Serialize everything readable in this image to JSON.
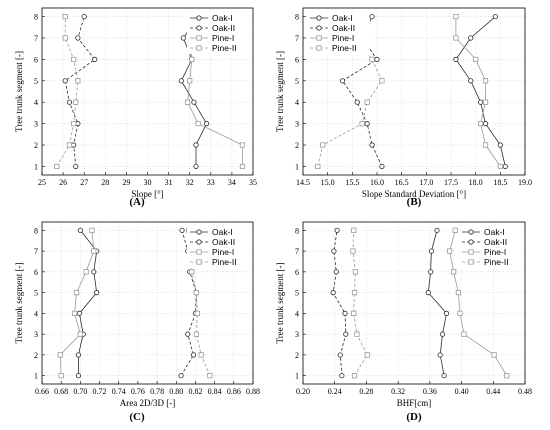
{
  "chart_data": [
    {
      "id": "A",
      "type": "line",
      "panel_label": "(A)",
      "xlabel": "Slope [°]",
      "ylabel": "Tree trunk segment [-]",
      "xlim": [
        25,
        35
      ],
      "xticks": [
        "25",
        "26",
        "27",
        "28",
        "29",
        "30",
        "31",
        "32",
        "33",
        "34",
        "35"
      ],
      "ylim": [
        0.6,
        8.4
      ],
      "yticks": [
        "1",
        "2",
        "3",
        "4",
        "5",
        "6",
        "7",
        "8"
      ],
      "legend_position": "top-right",
      "series": [
        {
          "name": "Oak-I",
          "style": "oak-solid",
          "x": [
            32.3,
            32.3,
            32.8,
            32.2,
            31.6,
            32.1,
            31.7,
            32.4
          ],
          "y": [
            1,
            2,
            3,
            4,
            5,
            6,
            7,
            8
          ]
        },
        {
          "name": "Oak-II",
          "style": "oak-dash",
          "x": [
            26.6,
            26.5,
            26.7,
            26.3,
            26.1,
            27.5,
            26.7,
            27.0
          ],
          "y": [
            1,
            2,
            3,
            4,
            5,
            6,
            7,
            8
          ]
        },
        {
          "name": "Pine-I",
          "style": "pine-solid",
          "x": [
            34.5,
            34.5,
            32.4,
            31.9,
            32.0,
            32.1,
            32.0,
            32.1
          ],
          "y": [
            1,
            2,
            3,
            4,
            5,
            6,
            7,
            8
          ]
        },
        {
          "name": "Pine-II",
          "style": "pine-dash",
          "x": [
            25.7,
            26.3,
            26.5,
            26.6,
            26.7,
            26.5,
            26.1,
            26.1
          ],
          "y": [
            1,
            2,
            3,
            4,
            5,
            6,
            7,
            8
          ]
        }
      ]
    },
    {
      "id": "B",
      "type": "line",
      "panel_label": "(B)",
      "xlabel": "Slope Standard Deviation  [°]",
      "ylabel": "Tree trunk segment [-]",
      "xlim": [
        14.5,
        19.0
      ],
      "xticks": [
        "14.5",
        "15.0",
        "15.5",
        "16.0",
        "16.5",
        "17.0",
        "17.5",
        "18.0",
        "18.5",
        "19.0"
      ],
      "ylim": [
        0.6,
        8.4
      ],
      "yticks": [
        "1",
        "2",
        "3",
        "4",
        "5",
        "6",
        "7",
        "8"
      ],
      "legend_position": "top-left",
      "series": [
        {
          "name": "Oak-I",
          "style": "oak-solid",
          "x": [
            18.6,
            18.5,
            18.2,
            18.1,
            17.9,
            17.6,
            17.9,
            18.4
          ],
          "y": [
            1,
            2,
            3,
            4,
            5,
            6,
            7,
            8
          ]
        },
        {
          "name": "Oak-II",
          "style": "oak-dash",
          "x": [
            16.1,
            15.9,
            15.8,
            15.6,
            15.3,
            16.0,
            15.7,
            15.9
          ],
          "y": [
            1,
            2,
            3,
            4,
            5,
            6,
            7,
            8
          ]
        },
        {
          "name": "Pine-I",
          "style": "pine-solid",
          "x": [
            18.5,
            18.2,
            18.1,
            18.2,
            18.2,
            18.0,
            17.6,
            17.6
          ],
          "y": [
            1,
            2,
            3,
            4,
            5,
            6,
            7,
            8
          ]
        },
        {
          "name": "Pine-II",
          "style": "pine-dash",
          "x": [
            14.8,
            14.9,
            15.7,
            15.8,
            16.1,
            15.9,
            15.6,
            15.6
          ],
          "y": [
            1,
            2,
            3,
            4,
            5,
            6,
            7,
            8
          ]
        }
      ]
    },
    {
      "id": "C",
      "type": "line",
      "panel_label": "(C)",
      "xlabel": "Area 2D/3D [-]",
      "ylabel": "Tree trunk segment [-]",
      "xlim": [
        0.66,
        0.88
      ],
      "xticks": [
        "0.66",
        "0.68",
        "0.70",
        "0.72",
        "0.74",
        "0.76",
        "0.78",
        "0.80",
        "0.82",
        "0.84",
        "0.86",
        "0.88"
      ],
      "ylim": [
        0.6,
        8.4
      ],
      "yticks": [
        "1",
        "2",
        "3",
        "4",
        "5",
        "6",
        "7",
        "8"
      ],
      "legend_position": "top-right",
      "series": [
        {
          "name": "Oak-I",
          "style": "oak-solid",
          "x": [
            0.698,
            0.698,
            0.703,
            0.699,
            0.717,
            0.714,
            0.717,
            0.7
          ],
          "y": [
            1,
            2,
            3,
            4,
            5,
            6,
            7,
            8
          ]
        },
        {
          "name": "Oak-II",
          "style": "oak-dash",
          "x": [
            0.805,
            0.818,
            0.812,
            0.82,
            0.821,
            0.814,
            0.812,
            0.806
          ],
          "y": [
            1,
            2,
            3,
            4,
            5,
            6,
            7,
            8
          ]
        },
        {
          "name": "Pine-I",
          "style": "pine-solid",
          "x": [
            0.68,
            0.679,
            0.7,
            0.694,
            0.696,
            0.706,
            0.714,
            0.712
          ],
          "y": [
            1,
            2,
            3,
            4,
            5,
            6,
            7,
            8
          ]
        },
        {
          "name": "Pine-II",
          "style": "pine-dash",
          "x": [
            0.835,
            0.826,
            0.821,
            0.822,
            0.821,
            0.816,
            0.814,
            0.813
          ],
          "y": [
            1,
            2,
            3,
            4,
            5,
            6,
            7,
            8
          ]
        }
      ]
    },
    {
      "id": "D",
      "type": "line",
      "panel_label": "(D)",
      "xlabel": "BHF[cm]",
      "ylabel": "Tree trunk segment [-]",
      "xlim": [
        0.2,
        0.48
      ],
      "xticks": [
        "0.20",
        "0.24",
        "0.28",
        "0.32",
        "0.36",
        "0.40",
        "0.44",
        "0.48"
      ],
      "ylim": [
        0.6,
        8.4
      ],
      "yticks": [
        "1",
        "2",
        "3",
        "4",
        "5",
        "6",
        "7",
        "8"
      ],
      "legend_position": "top-right",
      "series": [
        {
          "name": "Oak-I",
          "style": "oak-solid",
          "x": [
            0.378,
            0.373,
            0.376,
            0.381,
            0.358,
            0.361,
            0.362,
            0.369
          ],
          "y": [
            1,
            2,
            3,
            4,
            5,
            6,
            7,
            8
          ]
        },
        {
          "name": "Oak-II",
          "style": "oak-dash",
          "x": [
            0.249,
            0.247,
            0.254,
            0.253,
            0.238,
            0.242,
            0.239,
            0.243
          ],
          "y": [
            1,
            2,
            3,
            4,
            5,
            6,
            7,
            8
          ]
        },
        {
          "name": "Pine-I",
          "style": "pine-solid",
          "x": [
            0.457,
            0.441,
            0.403,
            0.398,
            0.396,
            0.39,
            0.385,
            0.392
          ],
          "y": [
            1,
            2,
            3,
            4,
            5,
            6,
            7,
            8
          ]
        },
        {
          "name": "Pine-II",
          "style": "pine-dash",
          "x": [
            0.265,
            0.281,
            0.268,
            0.264,
            0.265,
            0.266,
            0.263,
            0.264
          ],
          "y": [
            1,
            2,
            3,
            4,
            5,
            6,
            7,
            8
          ]
        }
      ]
    }
  ],
  "colors": {
    "oak": "#2b2b2b",
    "pine": "#9a9a9a",
    "grid": "#cccccc",
    "axis": "#000000"
  }
}
